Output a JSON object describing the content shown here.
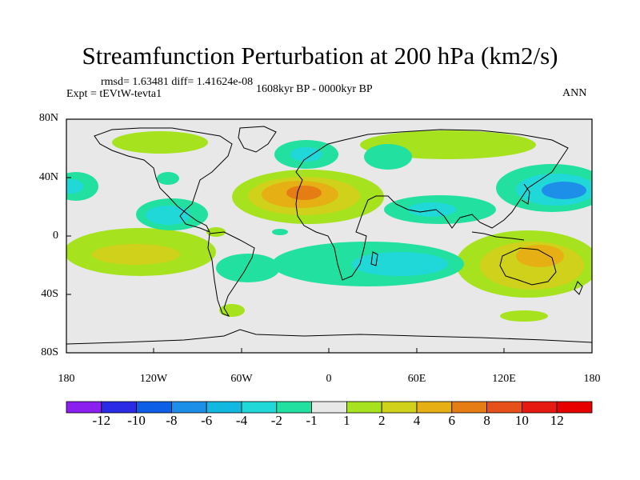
{
  "title": "Streamfunction Perturbation at 200 hPa (km2/s)",
  "stats": "rmsd= 1.63481  diff= 1.41624e-08",
  "experiment": "Expt = tEVtW-tevta1",
  "period": "1608kyr BP - 0000kyr BP",
  "season": "ANN",
  "lat_labels": [
    "80N",
    "40N",
    "0",
    "40S",
    "80S"
  ],
  "lon_labels": [
    "180",
    "120W",
    "60W",
    "0",
    "60E",
    "120E",
    "180"
  ],
  "colorbar": {
    "labels": [
      "-12",
      "-10",
      "-8",
      "-6",
      "-4",
      "-2",
      "-1",
      "1",
      "2",
      "4",
      "6",
      "8",
      "10",
      "12"
    ],
    "colors": [
      "#8a1ff0",
      "#2b2be6",
      "#0f5fe6",
      "#1d8fe8",
      "#12b8e0",
      "#20d8d8",
      "#22e0a0",
      "#e8e8e8",
      "#a6e21e",
      "#cfd11a",
      "#e6b014",
      "#e67c14",
      "#e6501a",
      "#e61a10",
      "#e60000"
    ]
  },
  "colors": {
    "land_background": "#e8e8e8",
    "coast": "#000000"
  }
}
